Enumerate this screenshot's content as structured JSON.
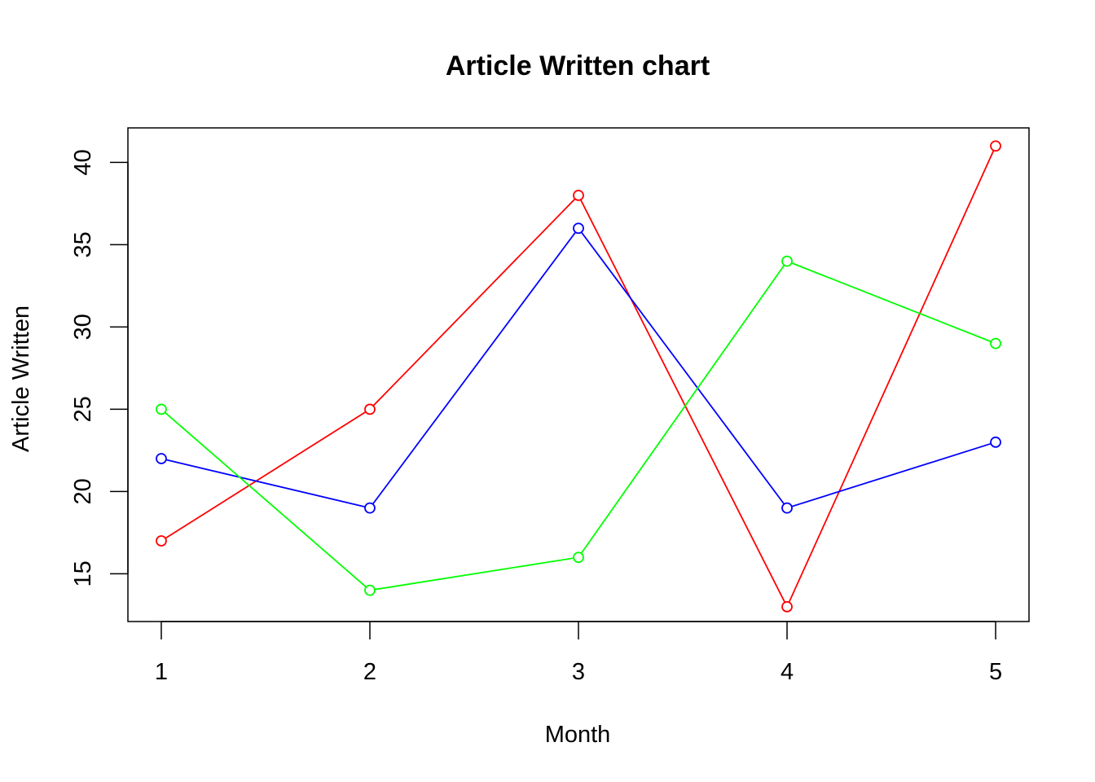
{
  "chart_data": {
    "type": "line",
    "title": "Article Written chart",
    "xlabel": "Month",
    "ylabel": "Article Written",
    "x": [
      1,
      2,
      3,
      4,
      5
    ],
    "x_ticks": [
      "1",
      "2",
      "3",
      "4",
      "5"
    ],
    "y_ticks": [
      "15",
      "20",
      "25",
      "30",
      "35",
      "40"
    ],
    "xlim": [
      0.84,
      5.16
    ],
    "ylim": [
      12.1,
      42.1
    ],
    "grid": false,
    "marker": "open-circle",
    "series": [
      {
        "color": "#FF0000",
        "values": [
          17,
          25,
          38,
          13,
          41
        ]
      },
      {
        "color": "#0000FF",
        "values": [
          22,
          19,
          36,
          19,
          23
        ]
      },
      {
        "color": "#00FF00",
        "values": [
          25,
          14,
          16,
          34,
          29
        ]
      }
    ]
  }
}
